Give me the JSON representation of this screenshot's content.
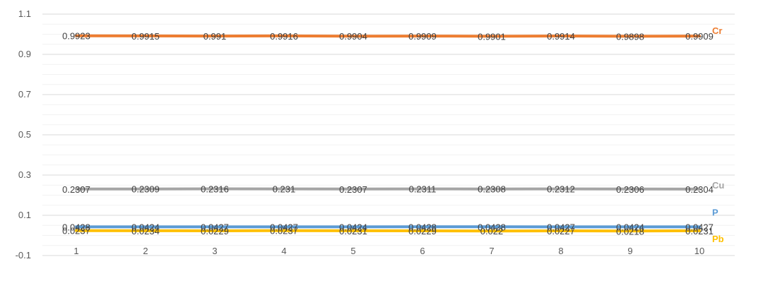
{
  "chart_data": {
    "type": "line",
    "title": "",
    "xlabel": "",
    "ylabel": "",
    "categories": [
      "1",
      "2",
      "3",
      "4",
      "5",
      "6",
      "7",
      "8",
      "9",
      "10"
    ],
    "ylim": [
      -0.1,
      1.1
    ],
    "y_ticks": [
      "-0.1",
      "0.1",
      "0.3",
      "0.5",
      "0.7",
      "0.9",
      "1.1"
    ],
    "grid": true,
    "legend": "inline labels at line ends",
    "series": [
      {
        "name": "Cr",
        "color": "#ED7D31",
        "values": [
          0.9923,
          0.9915,
          0.991,
          0.9916,
          0.9904,
          0.9909,
          0.9901,
          0.9914,
          0.9898,
          0.9909
        ],
        "labels": [
          "0.9923",
          "0.9915",
          "0.991",
          "0.9916",
          "0.9904",
          "0.9909",
          "0.9901",
          "0.9914",
          "0.9898",
          "0.9909"
        ]
      },
      {
        "name": "Cu",
        "color": "#A5A5A5",
        "values": [
          0.2307,
          0.2309,
          0.2316,
          0.231,
          0.2307,
          0.2311,
          0.2308,
          0.2312,
          0.2306,
          0.2304
        ],
        "labels": [
          "0.2307",
          "0.2309",
          "0.2316",
          "0.231",
          "0.2307",
          "0.2311",
          "0.2308",
          "0.2312",
          "0.2306",
          "0.2304"
        ]
      },
      {
        "name": "P",
        "color": "#5B9BD5",
        "values": [
          0.0428,
          0.0424,
          0.0427,
          0.0427,
          0.0424,
          0.0428,
          0.0428,
          0.0427,
          0.0424,
          0.0427
        ],
        "labels": [
          "0.0428",
          "0.0424",
          "0.0427",
          "0.0427",
          "0.0424",
          "0.0428",
          "0.0428",
          "0.0427",
          "0.0424",
          "0.0427"
        ]
      },
      {
        "name": "Pb",
        "color": "#FFC000",
        "values": [
          0.0237,
          0.0234,
          0.0229,
          0.0237,
          0.0231,
          0.0229,
          0.022,
          0.0227,
          0.0218,
          0.0231
        ],
        "labels": [
          "0.0237",
          "0.0234",
          "0.0229",
          "0.0237",
          "0.0231",
          "0.0229",
          "0.022",
          "0.0227",
          "0.0218",
          "0.0231"
        ]
      }
    ]
  }
}
